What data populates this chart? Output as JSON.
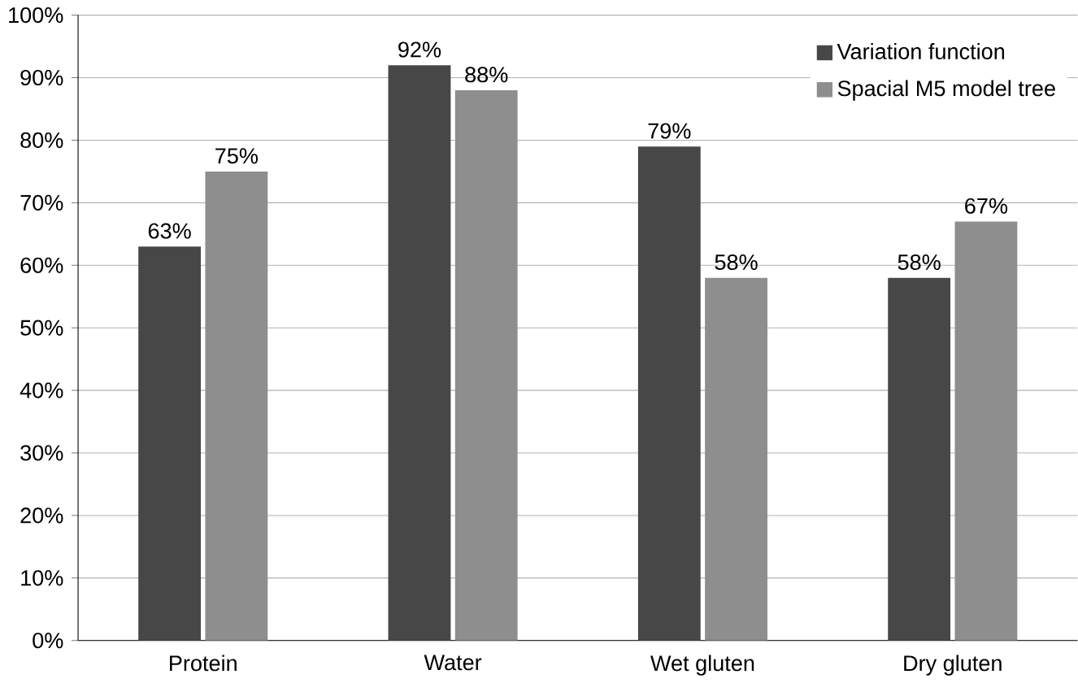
{
  "chart_data": {
    "type": "bar",
    "categories": [
      "Protein",
      "Water",
      "Wet gluten",
      "Dry gluten"
    ],
    "series": [
      {
        "name": "Variation function",
        "color": "#474747",
        "values": [
          63,
          92,
          79,
          58
        ],
        "value_labels": [
          "63%",
          "92%",
          "79%",
          "58%"
        ]
      },
      {
        "name": "Spacial M5 model tree",
        "color": "#8e8e8e",
        "values": [
          75,
          88,
          58,
          67
        ],
        "value_labels": [
          "75%",
          "88%",
          "58%",
          "67%"
        ]
      }
    ],
    "ylim": [
      0,
      100
    ],
    "yticks": [
      {
        "value": 0,
        "label": "0%"
      },
      {
        "value": 10,
        "label": "10%"
      },
      {
        "value": 20,
        "label": "20%"
      },
      {
        "value": 30,
        "label": "30%"
      },
      {
        "value": 40,
        "label": "40%"
      },
      {
        "value": 50,
        "label": "50%"
      },
      {
        "value": 60,
        "label": "60%"
      },
      {
        "value": 70,
        "label": "70%"
      },
      {
        "value": 80,
        "label": "80%"
      },
      {
        "value": 90,
        "label": "90%"
      },
      {
        "value": 100,
        "label": "100%"
      }
    ],
    "grid": "y",
    "legend": "top right"
  }
}
